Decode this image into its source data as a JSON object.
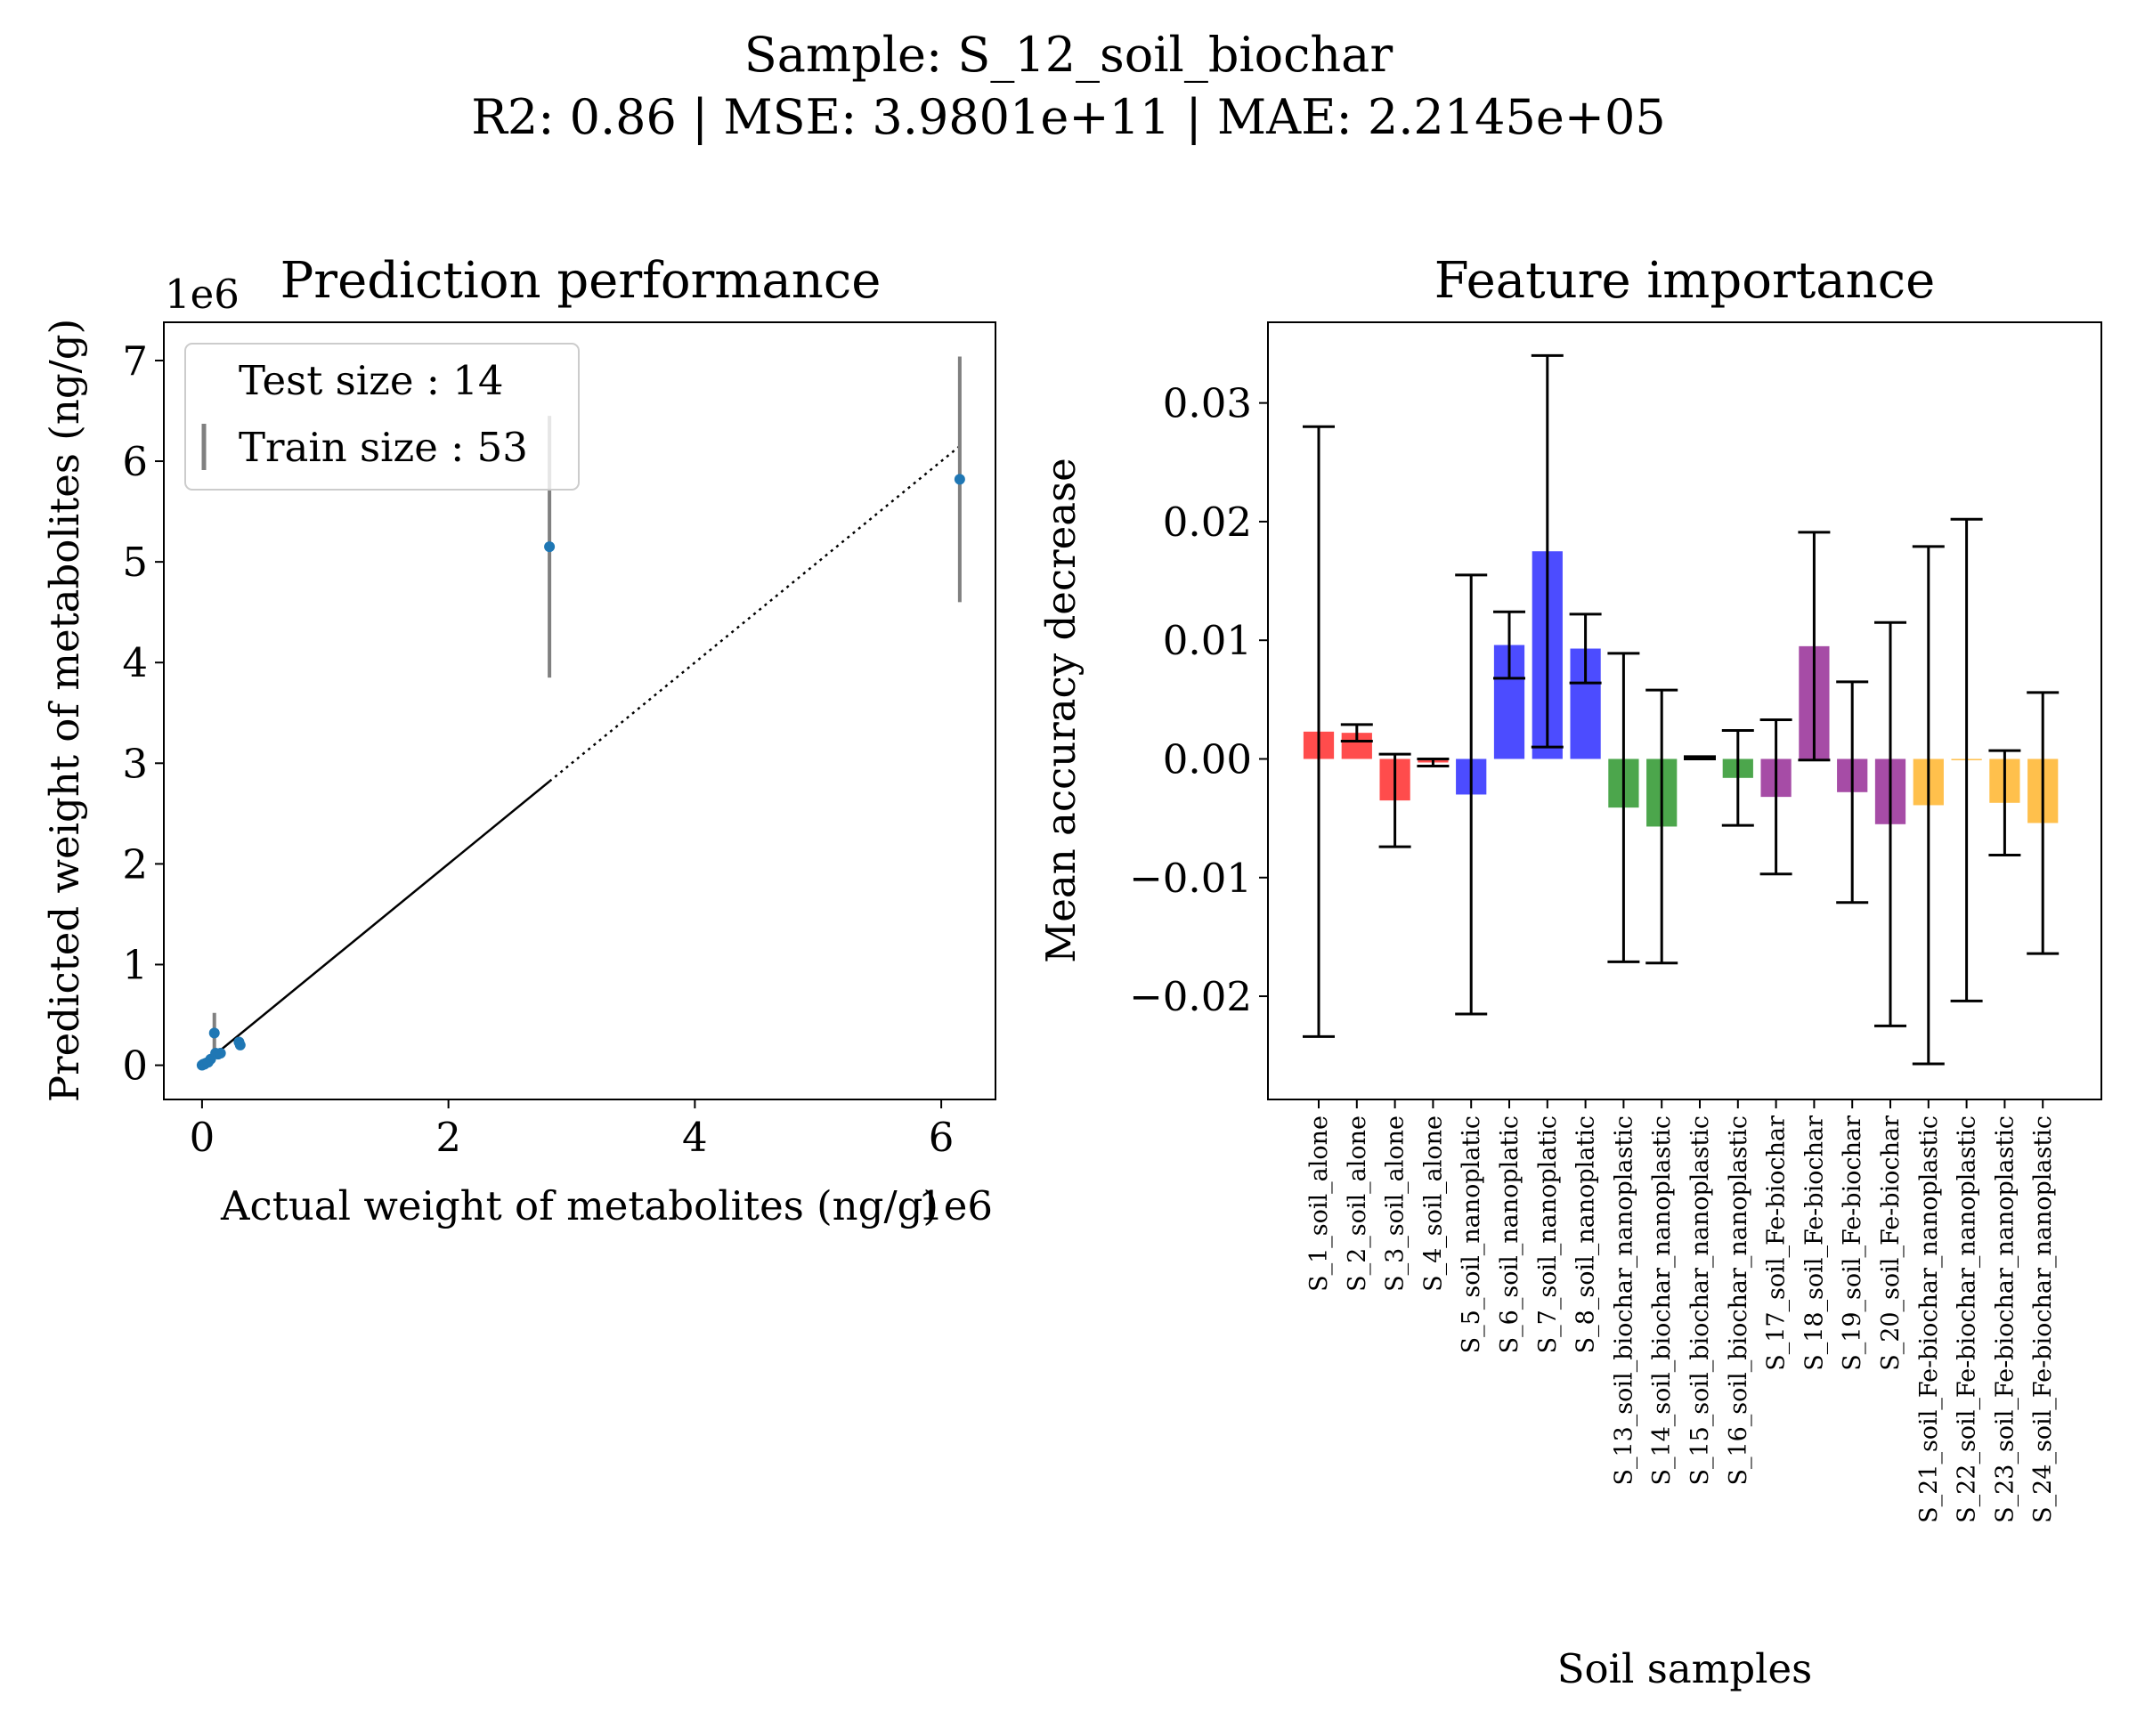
{
  "figure": {
    "suptitle_line1": "Sample: S_12_soil_biochar",
    "suptitle_line2": "R2: 0.86 | MSE: 3.9801e+11 | MAE: 2.2145e+05"
  },
  "chart_data": [
    {
      "type": "scatter",
      "title": "Prediction performance",
      "xlabel": "Actual weight of metabolites (ng/g)",
      "ylabel": "Predicted weight of metabolites (ng/g)",
      "x_offset_label": "1e6",
      "y_offset_label": "1e6",
      "xlim": [
        -0.31,
        6.44
      ],
      "ylim": [
        -0.34,
        7.38
      ],
      "xticks": [
        0,
        2,
        4,
        6
      ],
      "xtick_labels": [
        "0",
        "2",
        "4",
        "6"
      ],
      "yticks": [
        0,
        1,
        2,
        3,
        4,
        5,
        6,
        7
      ],
      "ytick_labels": [
        "0",
        "1",
        "2",
        "3",
        "4",
        "5",
        "6",
        "7"
      ],
      "legend": {
        "position": "upper-left",
        "entries": [
          "Test size : 14",
          "Train size : 53"
        ]
      },
      "point_color": "#1f77b4",
      "errorbar_color": "#808080",
      "points": [
        {
          "x": 0.0,
          "y": 0.0,
          "err": 0.01
        },
        {
          "x": 0.01,
          "y": 0.01,
          "err": 0.01
        },
        {
          "x": 0.02,
          "y": 0.01,
          "err": 0.02
        },
        {
          "x": 0.03,
          "y": 0.02,
          "err": 0.02
        },
        {
          "x": 0.05,
          "y": 0.03,
          "err": 0.02
        },
        {
          "x": 0.07,
          "y": 0.06,
          "err": 0.03
        },
        {
          "x": 0.1,
          "y": 0.32,
          "err": 0.2
        },
        {
          "x": 0.11,
          "y": 0.12,
          "err": 0.04
        },
        {
          "x": 0.13,
          "y": 0.11,
          "err": 0.04
        },
        {
          "x": 0.15,
          "y": 0.12,
          "err": 0.03
        },
        {
          "x": 0.3,
          "y": 0.23,
          "err": 0.05
        },
        {
          "x": 0.31,
          "y": 0.2,
          "err": 0.04
        },
        {
          "x": 2.82,
          "y": 5.15,
          "err": 1.3
        },
        {
          "x": 6.15,
          "y": 5.82,
          "err": 1.22
        }
      ],
      "fit_line": {
        "x": [
          0.15,
          2.82
        ],
        "y": [
          0.15,
          2.82
        ],
        "style": "solid"
      },
      "extrapolation_line": {
        "x": [
          2.82,
          6.15
        ],
        "y": [
          2.82,
          6.15
        ],
        "style": "dotted"
      }
    },
    {
      "type": "bar",
      "title": "Feature importance",
      "xlabel": "Soil samples",
      "ylabel": "Mean accuracy decrease",
      "ylim": [
        -0.0287,
        0.0368
      ],
      "yticks": [
        -0.02,
        -0.01,
        0.0,
        0.01,
        0.02,
        0.03
      ],
      "ytick_labels": [
        "−0.02",
        "−0.01",
        "0.00",
        "0.01",
        "0.02",
        "0.03"
      ],
      "group_colors": {
        "soil_alone": "#ff0000",
        "soil_nanoplatic": "#0000ff",
        "soil_biochar_nanoplastic": "#008000",
        "soil_Fe-biochar": "#800080",
        "soil_Fe-biochar_nanoplastic": "#ffa500"
      },
      "bar_opacity": 0.7,
      "categories": [
        "S_1_soil_alone",
        "S_2_soil_alone",
        "S_3_soil_alone",
        "S_4_soil_alone",
        "S_5_soil_nanoplatic",
        "S_6_soil_nanoplatic",
        "S_7_soil_nanoplatic",
        "S_8_soil_nanoplatic",
        "S_13_soil_biochar_nanoplastic",
        "S_14_soil_biochar_nanoplastic",
        "S_15_soil_biochar_nanoplastic",
        "S_16_soil_biochar_nanoplastic",
        "S_17_soil_Fe-biochar",
        "S_18_soil_Fe-biochar",
        "S_19_soil_Fe-biochar",
        "S_20_soil_Fe-biochar",
        "S_21_soil_Fe-biochar_nanoplastic",
        "S_22_soil_Fe-biochar_nanoplastic",
        "S_23_soil_Fe-biochar_nanoplastic",
        "S_24_soil_Fe-biochar_nanoplastic"
      ],
      "groups": [
        "soil_alone",
        "soil_alone",
        "soil_alone",
        "soil_alone",
        "soil_nanoplatic",
        "soil_nanoplatic",
        "soil_nanoplatic",
        "soil_nanoplatic",
        "soil_biochar_nanoplastic",
        "soil_biochar_nanoplastic",
        "soil_biochar_nanoplastic",
        "soil_biochar_nanoplastic",
        "soil_Fe-biochar",
        "soil_Fe-biochar",
        "soil_Fe-biochar",
        "soil_Fe-biochar",
        "soil_Fe-biochar_nanoplastic",
        "soil_Fe-biochar_nanoplastic",
        "soil_Fe-biochar_nanoplastic",
        "soil_Fe-biochar_nanoplastic"
      ],
      "values": [
        0.0023,
        0.0022,
        -0.0035,
        -0.0003,
        -0.003,
        0.0096,
        0.0175,
        0.0093,
        -0.0041,
        -0.0057,
        0.0001,
        -0.0016,
        -0.0032,
        0.0095,
        -0.0028,
        -0.0055,
        -0.0039,
        -0.0001,
        -0.0037,
        -0.0054
      ],
      "errors": [
        0.0257,
        0.0007,
        0.0039,
        0.0003,
        0.0185,
        0.0028,
        0.0165,
        0.0029,
        0.013,
        0.0115,
        0.0001,
        0.004,
        0.0065,
        0.0096,
        0.0093,
        0.017,
        0.0218,
        0.0203,
        0.0044,
        0.011
      ]
    }
  ]
}
